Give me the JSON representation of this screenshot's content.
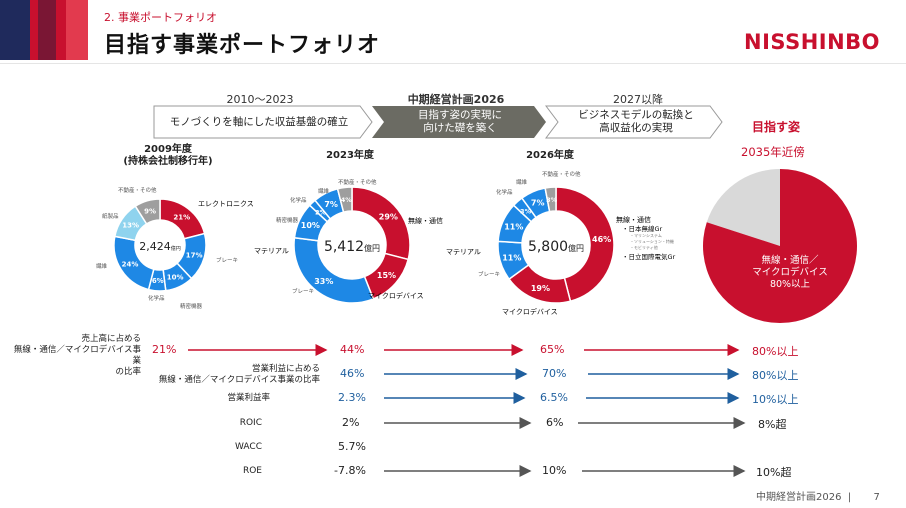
{
  "header": {
    "subtitle": "2. 事業ポートフォリオ",
    "title": "目指す事業ポートフォリオ",
    "logo": "NISSHINBO",
    "stripe_colors": [
      "#1f2a5c",
      "#c8102e",
      "#8b1c3b",
      "#c8102e",
      "#e23a4e"
    ]
  },
  "timeline": {
    "periods": [
      {
        "label": "2010～2023",
        "bold": false
      },
      {
        "label": "中期経営計画2026",
        "bold": true
      },
      {
        "label": "2027以降",
        "bold": false
      }
    ],
    "arrows": [
      {
        "text": "モノづくりを軸にした収益基盤の確立"
      },
      {
        "text": "目指す姿の実現に\n向けた礎を築く"
      },
      {
        "text": "ビジネスモデルの転換と\n高収益化の実現"
      }
    ]
  },
  "charts": [
    {
      "label": "2009年度\n(持株会社制移行年)",
      "total": "2,424",
      "unit": "億円",
      "slices": [
        {
          "name": "エレクトロニクス",
          "pct": 21,
          "color": "#c8102e"
        },
        {
          "name": "ブレーキ",
          "pct": 17,
          "color": "#1e88e5"
        },
        {
          "name": "精密機器",
          "pct": 10,
          "color": "#1e88e5"
        },
        {
          "name": "化学品",
          "pct": 6,
          "color": "#1e88e5"
        },
        {
          "name": "繊維",
          "pct": 24,
          "color": "#1e88e5"
        },
        {
          "name": "紙製品",
          "pct": 13,
          "color": "#8fd3ee"
        },
        {
          "name": "不動産・その他",
          "pct": 9,
          "color": "#9e9e9e"
        }
      ]
    },
    {
      "label": "2023年度",
      "total": "5,412",
      "unit": "億円",
      "slices": [
        {
          "name": "無線・通信",
          "pct": 29,
          "color": "#c8102e"
        },
        {
          "name": "マイクロデバイス",
          "pct": 15,
          "color": "#c8102e"
        },
        {
          "name": "ブレーキ",
          "pct": 33,
          "color": "#1e88e5"
        },
        {
          "name": "精密機器",
          "pct": 10,
          "color": "#1e88e5"
        },
        {
          "name": "化学品",
          "pct": 2,
          "color": "#1e88e5"
        },
        {
          "name": "繊維",
          "pct": 7,
          "color": "#1e88e5"
        },
        {
          "name": "不動産・その他",
          "pct": 4,
          "color": "#9e9e9e"
        }
      ]
    },
    {
      "label": "2026年度",
      "total": "5,800",
      "unit": "億円",
      "slices": [
        {
          "name": "無線・通信",
          "pct": 46,
          "color": "#c8102e"
        },
        {
          "name": "マイクロデバイス",
          "pct": 19,
          "color": "#c8102e"
        },
        {
          "name": "ブレーキ",
          "pct": 11,
          "color": "#1e88e5"
        },
        {
          "name": "精密機器",
          "pct": 11,
          "color": "#1e88e5"
        },
        {
          "name": "化学品",
          "pct": 3,
          "color": "#1e88e5"
        },
        {
          "name": "繊維",
          "pct": 7,
          "color": "#1e88e5"
        },
        {
          "name": "不動産・その他",
          "pct": 3,
          "color": "#9e9e9e"
        }
      ]
    }
  ],
  "chart_labels": {
    "c1": {
      "elec": "エレクトロニクス",
      "brake": "ブレーキ",
      "precision": "精密機器",
      "chem": "化学品",
      "fiber": "繊維",
      "paper": "紙製品",
      "other": "不動産・その他"
    },
    "c2": {
      "wireless": "無線・通信",
      "micro": "マイクロデバイス",
      "brake": "ブレーキ",
      "material": "マテリアル",
      "precision": "精密機器",
      "chem": "化学品",
      "fiber": "繊維",
      "other": "不動産・その他"
    },
    "c3": {
      "wireless": "無線・通信",
      "micro": "マイクロデバイス",
      "brake": "ブレーキ",
      "material": "マテリアル",
      "chem": "化学品",
      "fiber": "繊維",
      "other": "不動産・その他",
      "sub1": "・日本無線Gr",
      "sub1a": "・マリンシステム",
      "sub1b": "・ソリューション・特機",
      "sub1c": "・モビリティ他",
      "sub2": "・日立国際電気Gr"
    }
  },
  "goal": {
    "heading": "目指す姿",
    "year": "2035年近傍",
    "pie_text_1": "無線・通信／",
    "pie_text_2": "マイクロデバイス",
    "pie_text_3": "80%以上",
    "red_pct": 80,
    "red_color": "#c8102e",
    "gray_color": "#d9d9d9"
  },
  "metrics": [
    {
      "label": "売上高に占める\n無線・通信／マイクロデバイス事業\nの比率",
      "v2009": "21%",
      "v2023": "44%",
      "v2026": "65%",
      "v2035": "80%以上",
      "color": "#c8102e"
    },
    {
      "label": "営業利益に占める\n無線・通信／マイクロデバイス事業の比率",
      "v2009": "",
      "v2023": "46%",
      "v2026": "70%",
      "v2035": "80%以上",
      "color": "#1f5f9e"
    },
    {
      "label": "営業利益率",
      "v2009": "",
      "v2023": "2.3%",
      "v2026": "6.5%",
      "v2035": "10%以上",
      "color": "#1f5f9e"
    },
    {
      "label": "ROIC",
      "v2009": "",
      "v2023": "2%",
      "v2026": "6%",
      "v2035": "8%超",
      "color": "#555555"
    },
    {
      "label": "WACC",
      "v2009": "",
      "v2023": "5.7%",
      "v2026": "",
      "v2035": "",
      "color": "#555555"
    },
    {
      "label": "ROE",
      "v2009": "",
      "v2023": "-7.8%",
      "v2026": "10%",
      "v2035": "10%超",
      "color": "#555555"
    }
  ],
  "footer": {
    "text": "中期経営計画2026",
    "page": "7"
  }
}
